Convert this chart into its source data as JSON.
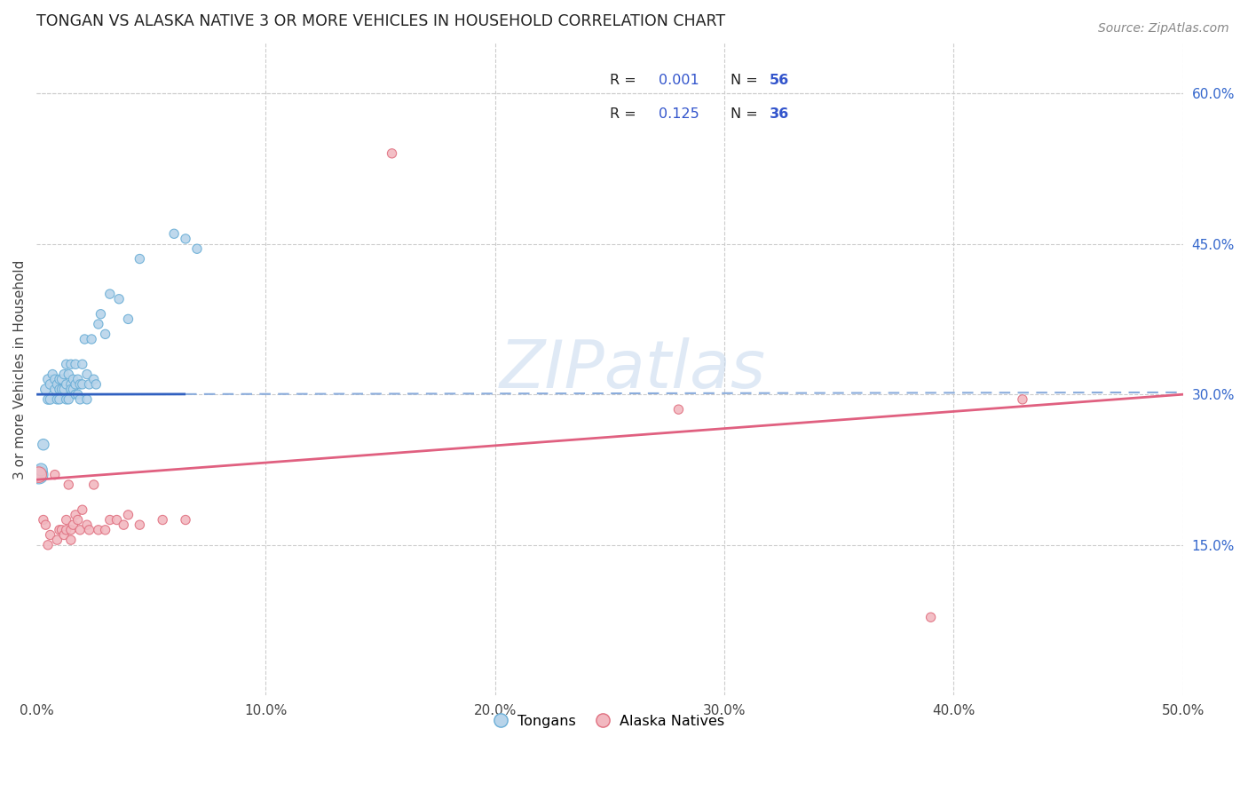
{
  "title": "TONGAN VS ALASKA NATIVE 3 OR MORE VEHICLES IN HOUSEHOLD CORRELATION CHART",
  "source": "Source: ZipAtlas.com",
  "ylabel": "3 or more Vehicles in Household",
  "watermark": "ZIPatlas",
  "xlim": [
    0.0,
    0.5
  ],
  "ylim": [
    0.0,
    0.65
  ],
  "xticks": [
    0.0,
    0.1,
    0.2,
    0.3,
    0.4,
    0.5
  ],
  "yticks_right": [
    0.15,
    0.3,
    0.45,
    0.6
  ],
  "ytick_labels_right": [
    "15.0%",
    "30.0%",
    "45.0%",
    "60.0%"
  ],
  "xtick_labels": [
    "0.0%",
    "10.0%",
    "20.0%",
    "30.0%",
    "40.0%",
    "50.0%"
  ],
  "legend_R_blue": "R = ",
  "legend_R_pink": "R =  ",
  "legend_val_blue": "0.001",
  "legend_val_pink": "0.125",
  "legend_N_blue": "N = 56",
  "legend_N_pink": "N = 36",
  "legend_label_bottom": [
    "Tongans",
    "Alaska Natives"
  ],
  "blue_edge": "#6aaed6",
  "pink_edge": "#e07080",
  "blue_fill": "#b8d4ea",
  "pink_fill": "#f2b8c0",
  "trendline_blue": "#3060c0",
  "trendline_blue_dash": "#8aacdc",
  "trendline_pink": "#e06080",
  "grid_color": "#cccccc",
  "tongans_x": [
    0.001,
    0.002,
    0.003,
    0.004,
    0.005,
    0.005,
    0.006,
    0.006,
    0.007,
    0.008,
    0.008,
    0.009,
    0.009,
    0.01,
    0.01,
    0.01,
    0.011,
    0.011,
    0.012,
    0.012,
    0.013,
    0.013,
    0.013,
    0.014,
    0.014,
    0.015,
    0.015,
    0.015,
    0.016,
    0.016,
    0.017,
    0.017,
    0.017,
    0.018,
    0.018,
    0.019,
    0.019,
    0.02,
    0.02,
    0.021,
    0.022,
    0.022,
    0.023,
    0.024,
    0.025,
    0.026,
    0.027,
    0.028,
    0.03,
    0.032,
    0.036,
    0.04,
    0.045,
    0.06,
    0.065,
    0.07
  ],
  "tongans_y": [
    0.22,
    0.225,
    0.25,
    0.305,
    0.295,
    0.315,
    0.295,
    0.31,
    0.32,
    0.305,
    0.315,
    0.295,
    0.31,
    0.295,
    0.315,
    0.305,
    0.305,
    0.315,
    0.305,
    0.32,
    0.295,
    0.31,
    0.33,
    0.295,
    0.32,
    0.31,
    0.305,
    0.33,
    0.305,
    0.315,
    0.3,
    0.31,
    0.33,
    0.3,
    0.315,
    0.295,
    0.31,
    0.31,
    0.33,
    0.355,
    0.295,
    0.32,
    0.31,
    0.355,
    0.315,
    0.31,
    0.37,
    0.38,
    0.36,
    0.4,
    0.395,
    0.375,
    0.435,
    0.46,
    0.455,
    0.445
  ],
  "tongans_size": [
    220,
    100,
    80,
    70,
    60,
    60,
    60,
    60,
    55,
    55,
    55,
    55,
    55,
    55,
    55,
    55,
    55,
    55,
    55,
    55,
    55,
    55,
    55,
    55,
    55,
    55,
    55,
    55,
    55,
    55,
    55,
    55,
    55,
    55,
    55,
    55,
    55,
    55,
    55,
    55,
    55,
    55,
    55,
    55,
    55,
    55,
    55,
    55,
    55,
    55,
    55,
    55,
    55,
    55,
    55,
    55
  ],
  "alaska_x": [
    0.001,
    0.003,
    0.004,
    0.005,
    0.006,
    0.008,
    0.009,
    0.01,
    0.011,
    0.012,
    0.013,
    0.013,
    0.014,
    0.015,
    0.015,
    0.016,
    0.017,
    0.018,
    0.019,
    0.02,
    0.022,
    0.023,
    0.025,
    0.027,
    0.03,
    0.032,
    0.035,
    0.038,
    0.04,
    0.045,
    0.055,
    0.065,
    0.155,
    0.28,
    0.39,
    0.43
  ],
  "alaska_y": [
    0.22,
    0.175,
    0.17,
    0.15,
    0.16,
    0.22,
    0.155,
    0.165,
    0.165,
    0.16,
    0.165,
    0.175,
    0.21,
    0.155,
    0.165,
    0.17,
    0.18,
    0.175,
    0.165,
    0.185,
    0.17,
    0.165,
    0.21,
    0.165,
    0.165,
    0.175,
    0.175,
    0.17,
    0.18,
    0.17,
    0.175,
    0.175,
    0.54,
    0.285,
    0.078,
    0.295
  ],
  "alaska_size": [
    160,
    55,
    55,
    55,
    55,
    55,
    55,
    55,
    55,
    55,
    55,
    55,
    55,
    55,
    55,
    55,
    55,
    55,
    55,
    55,
    55,
    55,
    55,
    55,
    55,
    55,
    55,
    55,
    55,
    55,
    55,
    55,
    55,
    55,
    55,
    55
  ],
  "blue_trend_solid_end": 0.065,
  "blue_trend_y_at0": 0.3,
  "blue_trend_y_at50": 0.302,
  "pink_trend_y_at0": 0.215,
  "pink_trend_y_at50": 0.3
}
